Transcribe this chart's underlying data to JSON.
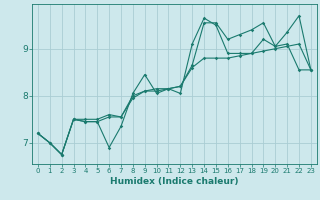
{
  "xlabel": "Humidex (Indice chaleur)",
  "ylabel": "",
  "bg_color": "#cde8ec",
  "grid_color": "#aacdd4",
  "line_color": "#1a7a6e",
  "xlim": [
    -0.5,
    23.5
  ],
  "ylim": [
    6.55,
    9.95
  ],
  "yticks": [
    7,
    8,
    9
  ],
  "xticks": [
    0,
    1,
    2,
    3,
    4,
    5,
    6,
    7,
    8,
    9,
    10,
    11,
    12,
    13,
    14,
    15,
    16,
    17,
    18,
    19,
    20,
    21,
    22,
    23
  ],
  "series": [
    [
      7.2,
      7.0,
      6.75,
      7.5,
      7.45,
      7.45,
      7.55,
      7.55,
      7.95,
      8.1,
      8.1,
      8.15,
      8.2,
      8.6,
      8.8,
      8.8,
      8.8,
      8.85,
      8.9,
      8.95,
      9.0,
      9.05,
      9.1,
      8.55
    ],
    [
      7.2,
      7.0,
      6.75,
      7.5,
      7.45,
      7.45,
      6.9,
      7.35,
      8.05,
      8.45,
      8.05,
      8.15,
      8.05,
      9.1,
      9.65,
      9.5,
      8.9,
      8.9,
      8.9,
      9.2,
      9.05,
      9.1,
      8.55,
      8.55
    ],
    [
      7.2,
      7.0,
      6.75,
      7.5,
      7.5,
      7.5,
      7.6,
      7.55,
      8.0,
      8.1,
      8.15,
      8.15,
      8.2,
      8.65,
      9.55,
      9.55,
      9.2,
      9.3,
      9.4,
      9.55,
      9.05,
      9.35,
      9.7,
      8.55
    ]
  ]
}
